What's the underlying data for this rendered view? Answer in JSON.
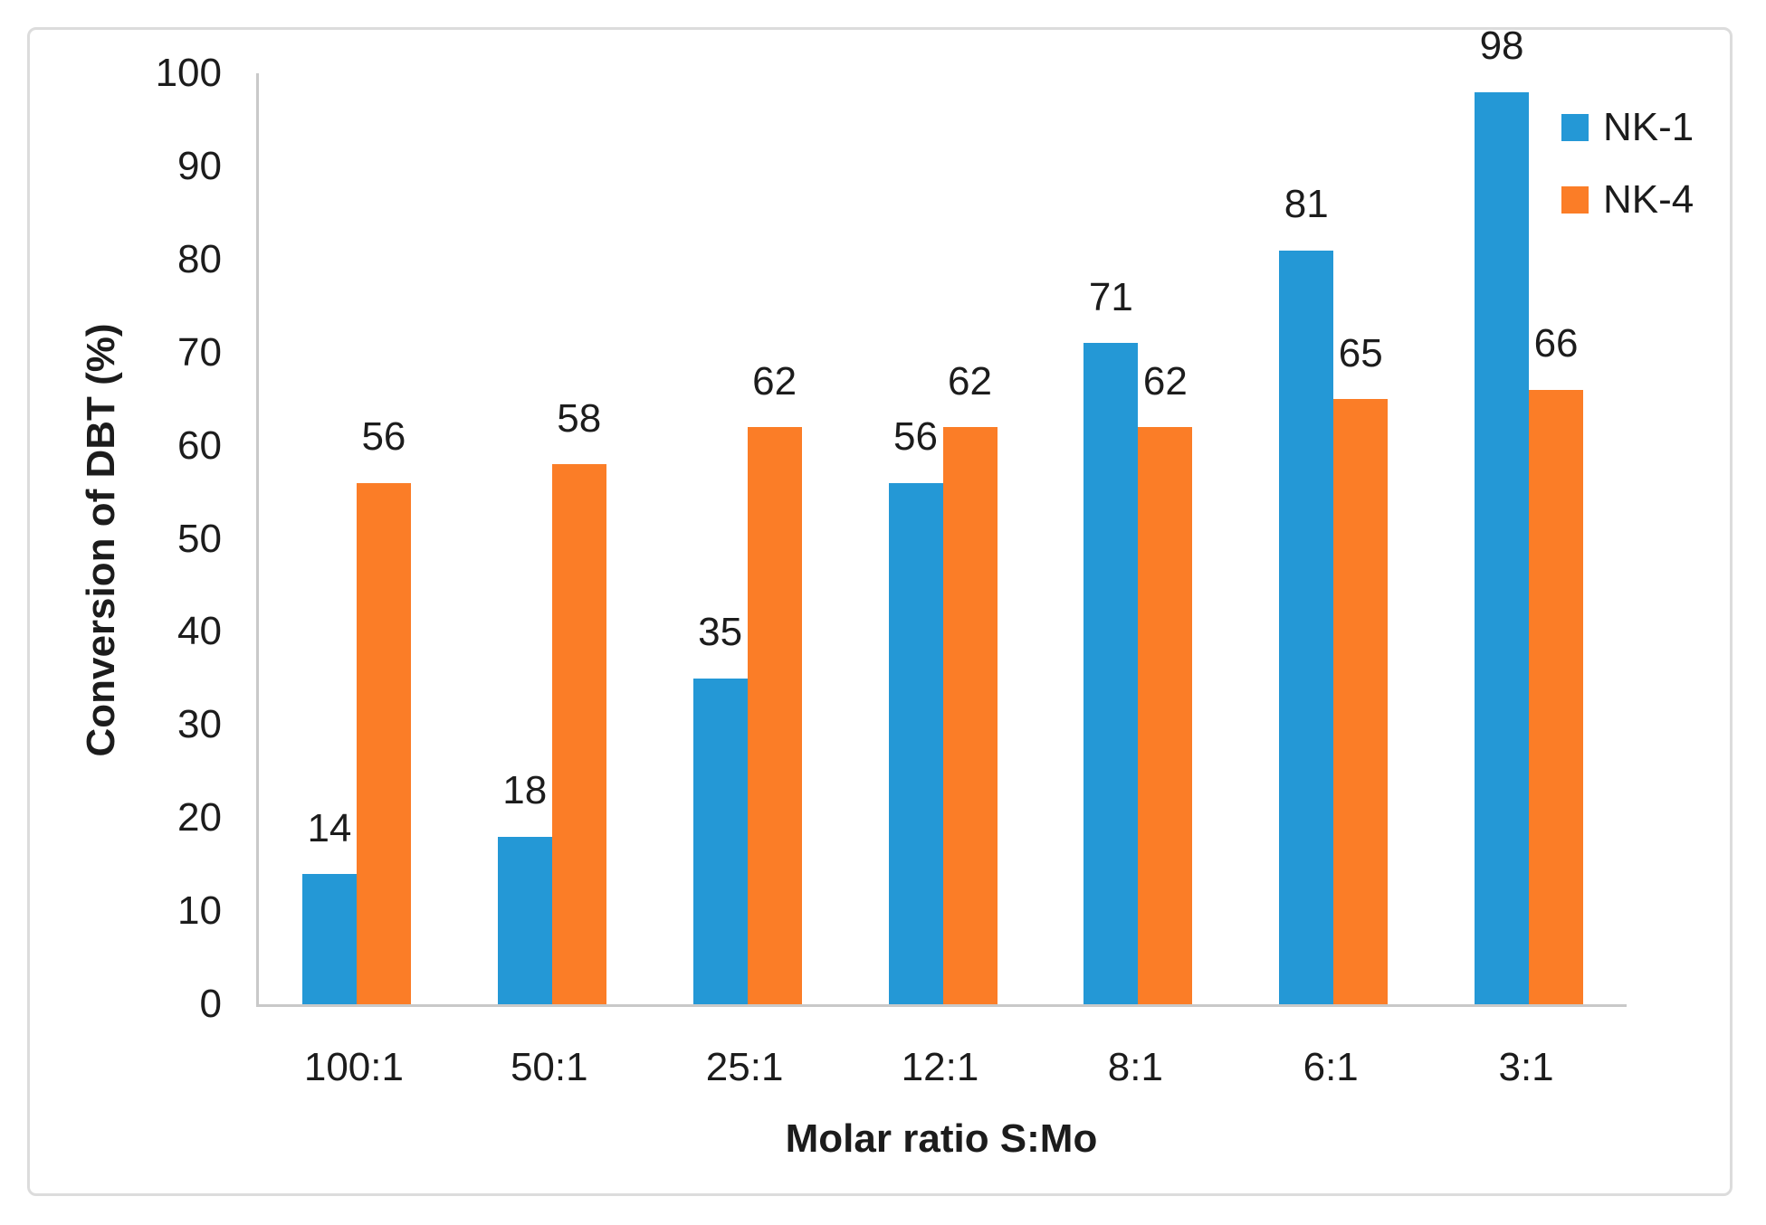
{
  "figure": {
    "background": "#ffffff",
    "border_color": "#dcdcdc"
  },
  "chart_data": {
    "type": "bar",
    "title": "",
    "xlabel": "Molar ratio S:Mo",
    "ylabel": "Conversion of DBT (%)",
    "categories": [
      "100:1",
      "50:1",
      "25:1",
      "12:1",
      "8:1",
      "6:1",
      "3:1"
    ],
    "series": [
      {
        "name": "NK-1",
        "color": "#2498d6",
        "values": [
          14,
          18,
          35,
          56,
          71,
          81,
          98
        ]
      },
      {
        "name": "NK-4",
        "color": "#fb7d27",
        "values": [
          56,
          58,
          62,
          62,
          62,
          65,
          66
        ]
      }
    ],
    "ylim": [
      0,
      100
    ],
    "ytick_step": 10,
    "yticks": [
      0,
      10,
      20,
      30,
      40,
      50,
      60,
      70,
      80,
      90,
      100
    ],
    "grid": false,
    "legend_position": "top-right",
    "data_labels": true,
    "axis_color": "#c9c9c9",
    "text_color": "#1c1c1c"
  }
}
